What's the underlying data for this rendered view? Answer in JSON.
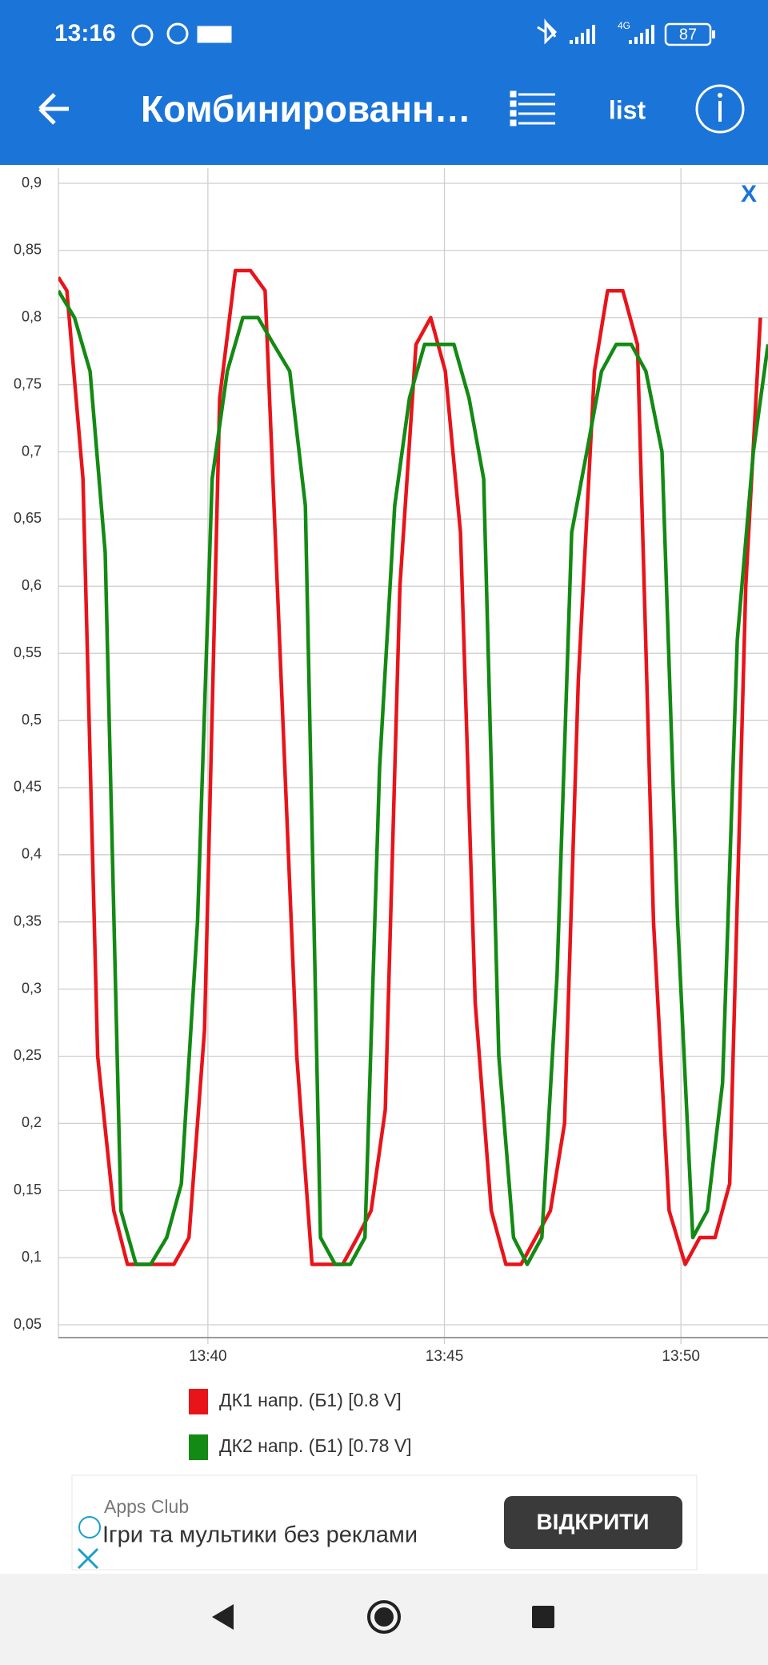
{
  "status_bar": {
    "time": "13:16",
    "network": "4G",
    "battery": "87"
  },
  "app_bar": {
    "title": "Комбинированн…",
    "menu": "list"
  },
  "close_label": "X",
  "chart_data": {
    "type": "line",
    "xlim": [
      816.84,
      831.84
    ],
    "xticks": [
      {
        "value": 820,
        "label": "13:40"
      },
      {
        "value": 825,
        "label": "13:45"
      },
      {
        "value": 830,
        "label": "13:50"
      }
    ],
    "ylim": [
      0.05,
      0.9
    ],
    "yticks": [
      {
        "value": 0.05,
        "label": "0,05"
      },
      {
        "value": 0.1,
        "label": "0,1"
      },
      {
        "value": 0.15,
        "label": "0,15"
      },
      {
        "value": 0.2,
        "label": "0,2"
      },
      {
        "value": 0.25,
        "label": "0,25"
      },
      {
        "value": 0.3,
        "label": "0,3"
      },
      {
        "value": 0.35,
        "label": "0,35"
      },
      {
        "value": 0.4,
        "label": "0,4"
      },
      {
        "value": 0.45,
        "label": "0,45"
      },
      {
        "value": 0.5,
        "label": "0,5"
      },
      {
        "value": 0.55,
        "label": "0,55"
      },
      {
        "value": 0.6,
        "label": "0,6"
      },
      {
        "value": 0.65,
        "label": "0,65"
      },
      {
        "value": 0.7,
        "label": "0,7"
      },
      {
        "value": 0.75,
        "label": "0,75"
      },
      {
        "value": 0.8,
        "label": "0,8"
      },
      {
        "value": 0.85,
        "label": "0,85"
      },
      {
        "value": 0.9,
        "label": "0,9"
      }
    ],
    "grid": true,
    "series": [
      {
        "name": "ДК1 напр. (Б1) [0.8 V]",
        "color": "#e8141a",
        "x": [
          816.84,
          817.02,
          817.36,
          817.67,
          818.01,
          818.3,
          818.63,
          819.28,
          819.6,
          819.93,
          820.25,
          820.58,
          820.9,
          821.21,
          821.55,
          821.88,
          822.2,
          822.85,
          823.16,
          823.45,
          823.75,
          824.06,
          824.4,
          824.71,
          825.02,
          825.34,
          825.65,
          825.99,
          826.3,
          826.62,
          826.93,
          827.24,
          827.54,
          827.83,
          828.17,
          828.45,
          828.77,
          829.08,
          829.42,
          829.75,
          830.09,
          830.4,
          830.72,
          831.03,
          831.37,
          831.68
        ],
        "values": [
          0.83,
          0.82,
          0.68,
          0.25,
          0.135,
          0.095,
          0.095,
          0.095,
          0.115,
          0.27,
          0.74,
          0.835,
          0.835,
          0.82,
          0.53,
          0.25,
          0.095,
          0.095,
          0.115,
          0.135,
          0.21,
          0.6,
          0.78,
          0.8,
          0.76,
          0.64,
          0.29,
          0.135,
          0.095,
          0.095,
          0.115,
          0.135,
          0.2,
          0.53,
          0.76,
          0.82,
          0.82,
          0.78,
          0.35,
          0.135,
          0.095,
          0.115,
          0.115,
          0.155,
          0.6,
          0.8
        ]
      },
      {
        "name": "ДК2 напр. (Б1) [0.78 V]",
        "color": "#138a13",
        "x": [
          816.84,
          817.18,
          817.51,
          817.83,
          818.16,
          818.48,
          818.79,
          819.13,
          819.44,
          819.78,
          820.09,
          820.41,
          820.74,
          821.06,
          821.39,
          821.73,
          822.06,
          822.38,
          822.69,
          823.01,
          823.32,
          823.63,
          823.95,
          824.26,
          824.58,
          824.89,
          825.2,
          825.52,
          825.83,
          826.15,
          826.46,
          826.75,
          827.06,
          827.38,
          827.69,
          828.01,
          828.32,
          828.63,
          828.95,
          829.26,
          829.6,
          829.93,
          830.25,
          830.56,
          830.88,
          831.19,
          831.53,
          831.84
        ],
        "values": [
          0.82,
          0.8,
          0.76,
          0.625,
          0.135,
          0.095,
          0.095,
          0.115,
          0.155,
          0.35,
          0.68,
          0.76,
          0.8,
          0.8,
          0.78,
          0.76,
          0.66,
          0.115,
          0.095,
          0.095,
          0.115,
          0.465,
          0.66,
          0.74,
          0.78,
          0.78,
          0.78,
          0.74,
          0.68,
          0.25,
          0.115,
          0.095,
          0.115,
          0.31,
          0.64,
          0.7,
          0.76,
          0.78,
          0.78,
          0.76,
          0.7,
          0.35,
          0.115,
          0.135,
          0.23,
          0.56,
          0.7,
          0.78
        ]
      }
    ]
  },
  "ad": {
    "source": "Apps Club",
    "text": "Ігри та мультики без реклами",
    "button": "ВІДКРИТИ"
  }
}
